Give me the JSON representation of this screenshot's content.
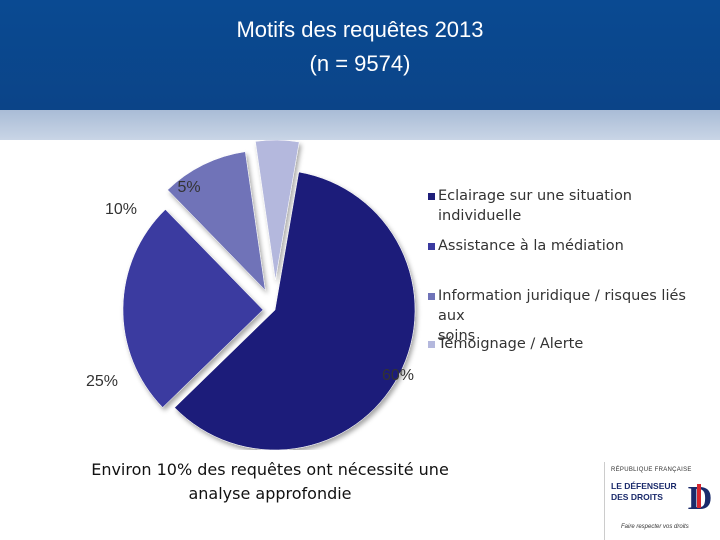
{
  "title": {
    "line1": "Motifs des requêtes 2013",
    "line2": "(n = 9574)"
  },
  "chart_data": {
    "type": "pie",
    "exploded": true,
    "categories": [
      "Eclairage sur une situation individuelle",
      "Assistance à la médiation",
      "Information juridique / risques liés aux soins",
      "Témoignage / Alerte"
    ],
    "values": [
      60,
      25,
      10,
      5
    ],
    "labels": [
      "60%",
      "25%",
      "10%",
      "5%"
    ],
    "colors": [
      "#1f1f7a",
      "#3a3aa0",
      "#6f73b8",
      "#b4b8dd"
    ],
    "legend_position": "right"
  },
  "legend": {
    "items": [
      {
        "lines": [
          "Eclairage sur une situation individuelle"
        ]
      },
      {
        "lines": [
          "Assistance à la médiation"
        ]
      },
      {
        "lines": [
          "Information juridique / risques liés aux",
          "soins"
        ]
      },
      {
        "lines": [
          "Témoignage / Alerte"
        ]
      }
    ]
  },
  "caption": {
    "line1": "Environ 10% des requêtes ont nécessité une",
    "line2": "analyse approfondie"
  },
  "logo": {
    "republique": "RÉPUBLIQUE FRANÇAISE",
    "name_line1": "LE DÉFENSEUR",
    "name_line2": "DES DROITS",
    "tagline": "Faire respecter vos droits",
    "mark_letter": "D"
  }
}
